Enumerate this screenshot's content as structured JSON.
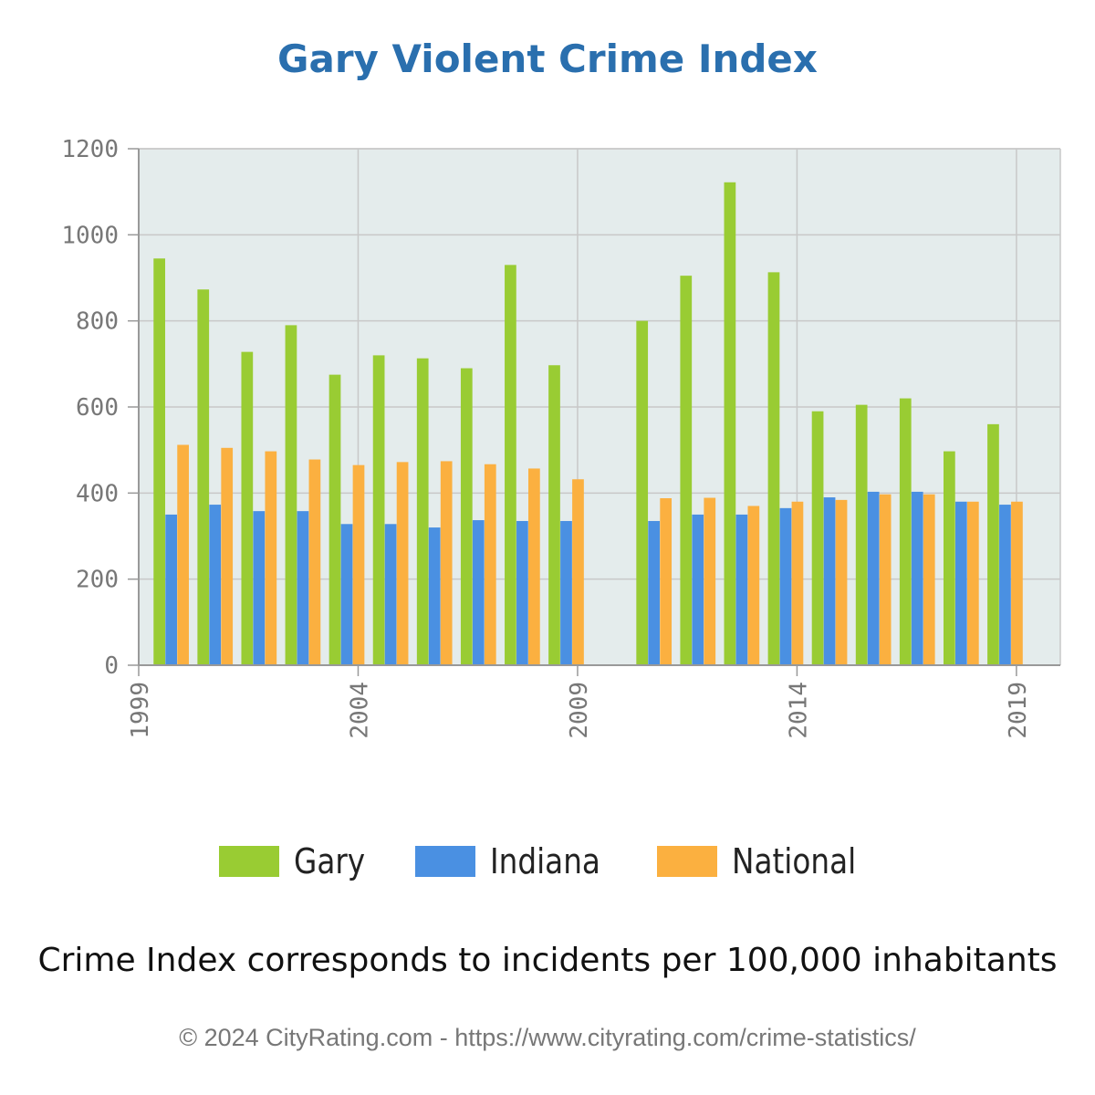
{
  "chart_data": {
    "type": "bar",
    "title": "Gary Violent Crime Index",
    "x": [
      2000,
      2001,
      2002,
      2003,
      2004,
      2005,
      2006,
      2007,
      2008,
      2009,
      2010,
      2011,
      2012,
      2013,
      2014,
      2015,
      2016,
      2017,
      2018,
      2019
    ],
    "series": [
      {
        "name": "Gary",
        "color": "#99cc33",
        "values": [
          945,
          873,
          728,
          790,
          675,
          720,
          713,
          690,
          930,
          697,
          null,
          800,
          905,
          1122,
          913,
          590,
          605,
          620,
          497,
          560
        ]
      },
      {
        "name": "Indiana",
        "color": "#4a90e2",
        "values": [
          350,
          373,
          358,
          358,
          328,
          328,
          320,
          337,
          335,
          335,
          null,
          335,
          350,
          350,
          365,
          390,
          403,
          403,
          380,
          373
        ]
      },
      {
        "name": "National",
        "color": "#fbb040",
        "values": [
          512,
          505,
          497,
          478,
          465,
          472,
          474,
          467,
          457,
          432,
          null,
          388,
          389,
          370,
          380,
          384,
          397,
          397,
          380,
          380
        ]
      }
    ],
    "xticks": [
      "1999",
      "2004",
      "2009",
      "2014",
      "2019"
    ],
    "yticks": [
      "0",
      "200",
      "400",
      "600",
      "800",
      "1000",
      "1200"
    ],
    "ylim": [
      0,
      1200
    ],
    "xlim": [
      1999,
      2020
    ],
    "xlabel": "",
    "ylabel": "",
    "grid": true,
    "legend_position": "bottom"
  },
  "caption": "Crime Index corresponds to incidents per 100,000 inhabitants",
  "footer": "© 2024 CityRating.com - https://www.cityrating.com/crime-statistics/",
  "colors": {
    "title": "#2a6fae",
    "plot_background": "#e4ecec",
    "grid": "#c8c8c8"
  }
}
